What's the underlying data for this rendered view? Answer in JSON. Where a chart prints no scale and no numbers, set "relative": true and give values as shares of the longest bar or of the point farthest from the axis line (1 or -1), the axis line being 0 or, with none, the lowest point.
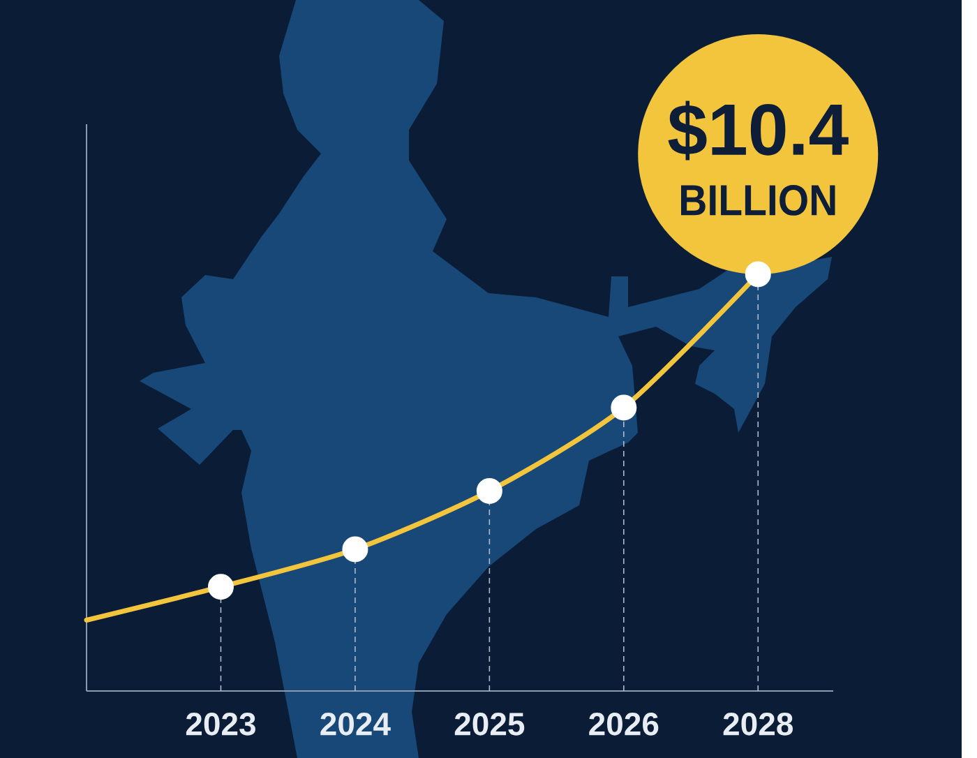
{
  "chart_data": {
    "type": "line",
    "relative": true,
    "categories": [
      null,
      "2023",
      "2024",
      "2025",
      "2026",
      "2028"
    ],
    "values": [
      0.17,
      0.25,
      0.34,
      0.48,
      0.68,
      1
    ],
    "color": "#f2c53d",
    "annotations": [
      {
        "text": "$10.4",
        "x": "2028",
        "y": 1
      },
      {
        "text": "BILLION",
        "x": "2028",
        "y": 1
      }
    ],
    "ref_lines": [
      {
        "axis": "x",
        "value": "2023",
        "color": "#aebbcb",
        "line_style": "dashed"
      },
      {
        "axis": "x",
        "value": "2024",
        "color": "#aebbcb",
        "line_style": "dashed"
      },
      {
        "axis": "x",
        "value": "2025",
        "color": "#aebbcb",
        "line_style": "dashed"
      },
      {
        "axis": "x",
        "value": "2026",
        "color": "#aebbcb",
        "line_style": "dashed"
      },
      {
        "axis": "x",
        "value": "2028",
        "color": "#aebbcb",
        "line_style": "dashed"
      }
    ],
    "tick_labels": "x",
    "marker": "circle",
    "line_style": "solid"
  }
}
